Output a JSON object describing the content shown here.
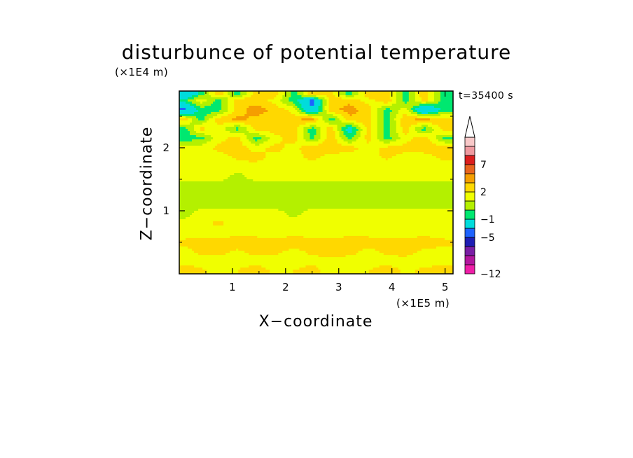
{
  "chart_data": {
    "type": "heatmap",
    "title": "disturbunce of potential temperature",
    "xlabel": "X−coordinate",
    "ylabel": "Z−coordinate",
    "x_unit": "(×1E5 m)",
    "y_unit": "(×1E4 m)",
    "annotation": "t=35400 s",
    "xlim": [
      0,
      5.15
    ],
    "ylim": [
      0,
      2.9
    ],
    "x_ticks": [
      1,
      2,
      3,
      4,
      5
    ],
    "x_tick_labels": [
      "1",
      "2",
      "3",
      "4",
      "5"
    ],
    "y_ticks": [
      1,
      2
    ],
    "y_tick_labels": [
      "1",
      "2"
    ],
    "colorbar": {
      "levels": [
        -12,
        -11,
        -9,
        -7,
        -5,
        -3,
        -1,
        0,
        1,
        2,
        3,
        5,
        7,
        9,
        11
      ],
      "labels": [
        "−12",
        "−5",
        "−1",
        "2",
        "7"
      ],
      "label_values": [
        -12,
        -5,
        -1,
        2,
        7
      ],
      "colors": [
        "#ef1ea8",
        "#b3169e",
        "#7a1ea5",
        "#1e1eb4",
        "#1e63ff",
        "#00dcdc",
        "#00e870",
        "#b4f000",
        "#f0ff00",
        "#ffd800",
        "#f59e00",
        "#e8641e",
        "#dc1e1e",
        "#ef9aa0",
        "#f8c8c8"
      ],
      "extend": "max"
    },
    "field_description": "Rows from bottom to top; columns from left (x=0) to right (x=5.15). Values in colorbar units.",
    "field_x": [
      0.1,
      0.4,
      0.75,
      1.1,
      1.45,
      1.8,
      2.15,
      2.5,
      2.85,
      3.2,
      3.55,
      3.9,
      4.25,
      4.6,
      5.0
    ],
    "field_z": [
      0.05,
      0.2,
      0.35,
      0.5,
      0.65,
      0.8,
      0.95,
      1.1,
      1.25,
      1.4,
      1.55,
      1.7,
      1.85,
      2.0,
      2.15,
      2.3,
      2.45,
      2.6,
      2.75,
      2.85
    ],
    "field_values": [
      [
        2.5,
        2.2,
        1.5,
        2.0,
        2.5,
        1.8,
        2.0,
        2.4,
        1.5,
        1.2,
        2.0,
        2.5,
        1.8,
        2.2,
        2.5
      ],
      [
        1.6,
        1.6,
        1.6,
        1.7,
        1.6,
        1.6,
        1.6,
        1.7,
        1.6,
        1.6,
        1.6,
        1.6,
        1.7,
        1.6,
        1.6
      ],
      [
        1.7,
        2.2,
        2.3,
        1.8,
        2.3,
        2.2,
        1.7,
        2.2,
        2.4,
        2.3,
        1.7,
        2.2,
        2.3,
        1.8,
        1.7
      ],
      [
        2.2,
        2.4,
        2.2,
        2.6,
        2.5,
        2.3,
        2.6,
        2.4,
        2.2,
        2.6,
        2.5,
        2.4,
        2.3,
        2.5,
        2.2
      ],
      [
        1.6,
        1.6,
        1.6,
        1.7,
        1.6,
        1.6,
        1.6,
        1.6,
        1.7,
        1.6,
        1.6,
        1.6,
        1.6,
        1.7,
        1.6
      ],
      [
        1.6,
        1.7,
        2.2,
        1.6,
        1.7,
        1.6,
        1.6,
        1.7,
        1.6,
        1.6,
        1.6,
        1.6,
        1.7,
        1.6,
        1.7
      ],
      [
        0.5,
        1.5,
        1.6,
        1.6,
        1.5,
        1.6,
        0.6,
        1.6,
        1.5,
        1.6,
        1.6,
        1.5,
        1.6,
        1.6,
        1.5
      ],
      [
        0.6,
        0.6,
        0.5,
        0.6,
        0.6,
        0.5,
        0.6,
        0.6,
        0.5,
        0.6,
        0.6,
        0.5,
        0.6,
        0.6,
        0.5
      ],
      [
        0.5,
        0.6,
        0.6,
        0.5,
        0.6,
        0.6,
        0.5,
        0.6,
        0.6,
        0.5,
        0.6,
        0.6,
        0.5,
        0.6,
        0.6
      ],
      [
        0.6,
        0.5,
        0.6,
        0.6,
        0.5,
        0.6,
        0.6,
        0.5,
        0.6,
        0.6,
        0.5,
        0.6,
        0.6,
        0.5,
        0.6
      ],
      [
        1.6,
        1.5,
        1.6,
        0.6,
        1.6,
        1.6,
        1.5,
        1.6,
        1.6,
        1.5,
        1.6,
        1.5,
        1.6,
        1.6,
        1.5
      ],
      [
        1.6,
        1.6,
        1.5,
        1.6,
        1.6,
        1.5,
        1.6,
        1.6,
        1.5,
        1.6,
        1.6,
        1.5,
        1.6,
        1.6,
        1.5
      ],
      [
        1.6,
        1.6,
        1.6,
        2.2,
        2.4,
        1.6,
        1.6,
        2.3,
        1.6,
        1.6,
        1.6,
        2.2,
        1.6,
        1.6,
        2.3
      ],
      [
        1.6,
        1.6,
        2.3,
        2.5,
        1.6,
        2.4,
        1.6,
        2.8,
        2.6,
        2.4,
        1.6,
        2.3,
        2.4,
        2.5,
        2.6
      ],
      [
        -0.5,
        -0.4,
        1.6,
        2.5,
        -0.6,
        1.6,
        2.5,
        -0.5,
        2.8,
        -0.4,
        2.4,
        -0.5,
        1.6,
        2.6,
        -0.4
      ],
      [
        -0.6,
        2.4,
        1.6,
        -0.5,
        2.4,
        2.6,
        2.5,
        -0.6,
        2.8,
        -2.0,
        2.4,
        -0.5,
        2.6,
        -0.6,
        2.8
      ],
      [
        2.5,
        -0.5,
        2.6,
        3.2,
        2.8,
        2.5,
        2.6,
        3.5,
        -0.6,
        2.7,
        2.5,
        -0.5,
        2.8,
        3.2,
        2.6
      ],
      [
        -3.5,
        -0.6,
        -0.5,
        2.6,
        3.5,
        2.7,
        1.6,
        -3.0,
        2.6,
        3.5,
        2.5,
        -0.6,
        1.6,
        -3.5,
        -0.5
      ],
      [
        -0.5,
        1.6,
        -0.6,
        2.8,
        2.6,
        1.6,
        -0.5,
        -3.5,
        2.6,
        2.7,
        1.6,
        2.8,
        -0.5,
        2.5,
        -0.6
      ],
      [
        -3.0,
        -0.5,
        2.6,
        -0.6,
        2.5,
        2.6,
        -0.5,
        2.6,
        2.5,
        -0.6,
        2.6,
        2.5,
        -0.5,
        2.6,
        -0.6
      ]
    ]
  }
}
